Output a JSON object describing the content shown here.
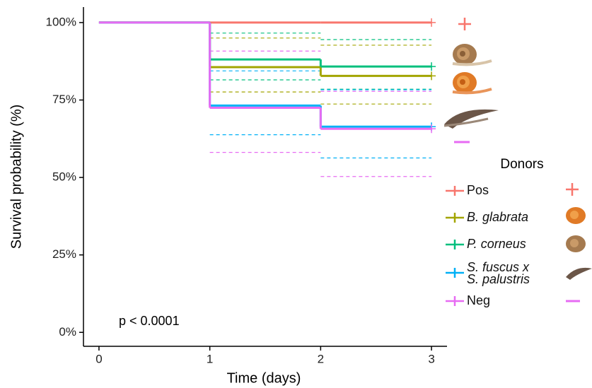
{
  "chart_data": {
    "type": "survival",
    "x_label": "Time (days)",
    "y_label": "Survival probability (%)",
    "annotation": "p < 0.0001",
    "legend_title": "Donors",
    "x": [
      0,
      1,
      2,
      3
    ],
    "xlim": [
      -0.14,
      3.14
    ],
    "ylim": [
      -4.5,
      105
    ],
    "xticks": [
      0,
      1,
      2,
      3
    ],
    "yticks": [
      {
        "value": 0,
        "label": "0%"
      },
      {
        "value": 25,
        "label": "25%"
      },
      {
        "value": 50,
        "label": "50%"
      },
      {
        "value": 75,
        "label": "75%"
      },
      {
        "value": 100,
        "label": "100%"
      }
    ],
    "series": [
      {
        "name": "Pos",
        "color": "#f8766d",
        "italic": false,
        "values": [
          100,
          100,
          100,
          100
        ],
        "upper": [
          null,
          null,
          null,
          null
        ],
        "lower": [
          null,
          null,
          null,
          null
        ]
      },
      {
        "name": "B. glabrata",
        "color": "#a3a500",
        "italic": true,
        "values": [
          100,
          85.6,
          82.8,
          82.8
        ],
        "upper": [
          null,
          95,
          92.7,
          92.7
        ],
        "lower": [
          null,
          77.6,
          73.7,
          73.7
        ]
      },
      {
        "name": "P. corneus",
        "color": "#00bf7d",
        "italic": true,
        "values": [
          100,
          88.1,
          85.8,
          85.8
        ],
        "upper": [
          null,
          96.6,
          94.5,
          94.5
        ],
        "lower": [
          null,
          81.5,
          78.5,
          78.5
        ]
      },
      {
        "name": "S. fuscus x S. palustris",
        "color": "#00b0f6",
        "italic": true,
        "values": [
          100,
          73.2,
          66.4,
          66.4
        ],
        "upper": [
          null,
          84.4,
          78.3,
          78.3
        ],
        "lower": [
          null,
          63.8,
          56.3,
          56.3
        ]
      },
      {
        "name": "Neg",
        "color": "#e76bf3",
        "italic": false,
        "values": [
          100,
          72.5,
          65.7,
          65.7
        ],
        "upper": [
          null,
          90.8,
          77.8,
          77.8
        ],
        "lower": [
          null,
          58.1,
          50.3,
          50.3
        ]
      }
    ]
  }
}
